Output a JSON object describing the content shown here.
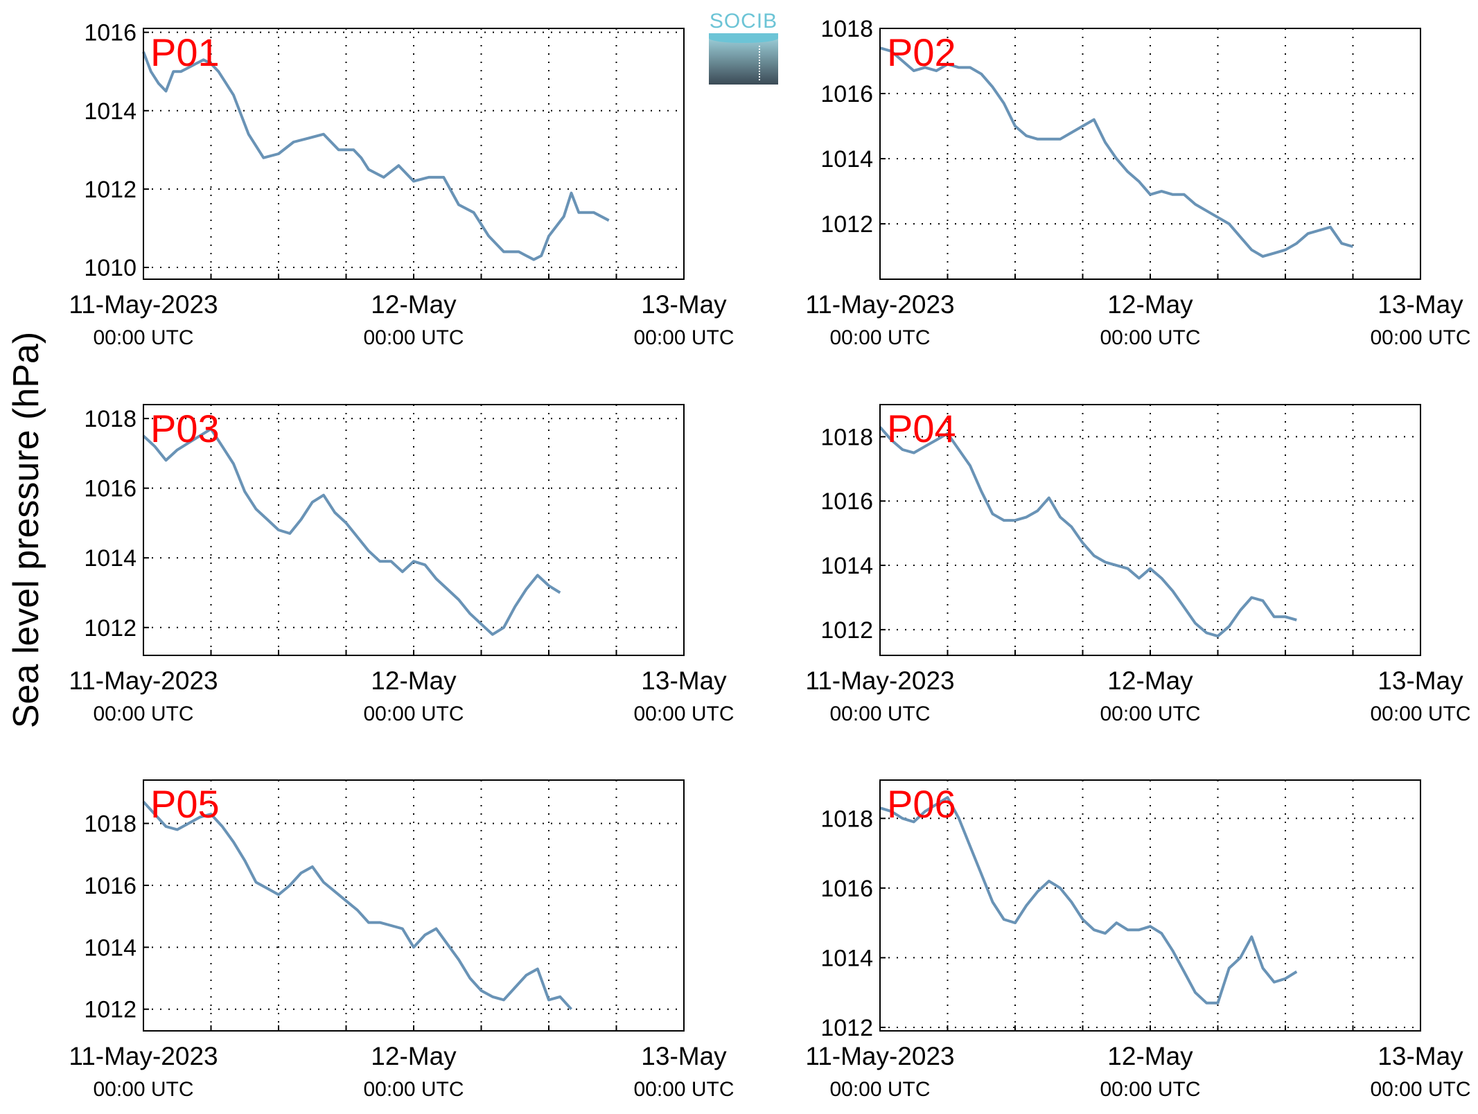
{
  "figure": {
    "ylabel": "Sea level pressure (hPa)",
    "logo_text": "SOCIB"
  },
  "colors": {
    "line": "#6993b6",
    "station_label": "#ff0000",
    "grid": "#000000",
    "axes": "#000000"
  },
  "chart_data": [
    {
      "type": "line",
      "panel_label": "P01",
      "xlim": [
        "11-May-2023 00:00 UTC",
        "13-May 00:00 UTC"
      ],
      "x_ticks": [
        {
          "line1": "11-May-2023",
          "line2": "00:00 UTC"
        },
        {
          "line1": "12-May",
          "line2": "00:00 UTC"
        },
        {
          "line1": "13-May",
          "line2": "00:00 UTC"
        }
      ],
      "ylim": [
        1009.7,
        1016.1
      ],
      "y_ticks": [
        1010,
        1012,
        1014,
        1016
      ],
      "grid": true,
      "x_hours": [
        0,
        1,
        2,
        3,
        4,
        5,
        6,
        7,
        8,
        9,
        10,
        11,
        12,
        14,
        16,
        18,
        20,
        22,
        24,
        26,
        28,
        29,
        30,
        32,
        34,
        36,
        38,
        40,
        42,
        44,
        45,
        46,
        48,
        50,
        51,
        52,
        53,
        54,
        56,
        57,
        58,
        60,
        62,
        64,
        66,
        68,
        70,
        72
      ],
      "values": [
        1015.5,
        1015.0,
        1014.7,
        1014.5,
        1015.0,
        1015.0,
        1015.1,
        1015.2,
        1015.3,
        1015.2,
        1015.0,
        1014.7,
        1014.4,
        1013.4,
        1012.8,
        1012.9,
        1013.2,
        1013.3,
        1013.4,
        1013.0,
        1013.0,
        1012.8,
        1012.5,
        1012.3,
        1012.6,
        1012.2,
        1012.3,
        1012.3,
        1011.6,
        1011.4,
        1011.1,
        1010.8,
        1010.4,
        1010.4,
        1010.3,
        1010.2,
        1010.3,
        1010.8,
        1011.3,
        1011.9,
        1011.4,
        1011.4,
        1011.2,
        null,
        null,
        null,
        null,
        null
      ]
    },
    {
      "type": "line",
      "panel_label": "P02",
      "xlim": [
        "11-May-2023 00:00 UTC",
        "13-May 00:00 UTC"
      ],
      "x_ticks": [
        {
          "line1": "11-May-2023",
          "line2": "00:00 UTC"
        },
        {
          "line1": "12-May",
          "line2": "00:00 UTC"
        },
        {
          "line1": "13-May",
          "line2": "00:00 UTC"
        }
      ],
      "ylim": [
        1010.3,
        1018.0
      ],
      "y_ticks": [
        1012,
        1014,
        1016,
        1018
      ],
      "grid": true,
      "x_hours": [
        0,
        1,
        2,
        3,
        4,
        5,
        6,
        7,
        8,
        9,
        10,
        11,
        12,
        13,
        14,
        15,
        16,
        17,
        18,
        19,
        20,
        21,
        22,
        23,
        24,
        25,
        26,
        27,
        28,
        29,
        30,
        31,
        32,
        33,
        34,
        35,
        36,
        37,
        38,
        39,
        40,
        41,
        42,
        43,
        44,
        45,
        46,
        47,
        48
      ],
      "values": [
        1017.4,
        1017.3,
        1017.0,
        1016.7,
        1016.8,
        1016.7,
        1016.9,
        1016.8,
        1016.8,
        1016.6,
        1016.2,
        1015.7,
        1015.0,
        1014.7,
        1014.6,
        1014.6,
        1014.6,
        1014.8,
        1015.0,
        1015.2,
        1014.5,
        1014.0,
        1013.6,
        1013.3,
        1012.9,
        1013.0,
        1012.9,
        1012.9,
        1012.6,
        1012.4,
        1012.2,
        1012.0,
        1011.6,
        1011.2,
        1011.0,
        1011.1,
        1011.2,
        1011.4,
        1011.7,
        1011.8,
        1011.9,
        1011.4,
        1011.3,
        null,
        null,
        null,
        null,
        null,
        null
      ]
    },
    {
      "type": "line",
      "panel_label": "P03",
      "xlim": [
        "11-May-2023 00:00 UTC",
        "13-May 00:00 UTC"
      ],
      "x_ticks": [
        {
          "line1": "11-May-2023",
          "line2": "00:00 UTC"
        },
        {
          "line1": "12-May",
          "line2": "00:00 UTC"
        },
        {
          "line1": "13-May",
          "line2": "00:00 UTC"
        }
      ],
      "ylim": [
        1011.2,
        1018.4
      ],
      "y_ticks": [
        1012,
        1014,
        1016,
        1018
      ],
      "grid": true,
      "x_hours": [
        0,
        1,
        2,
        3,
        4,
        5,
        6,
        7,
        8,
        9,
        10,
        11,
        12,
        13,
        14,
        15,
        16,
        17,
        18,
        19,
        20,
        21,
        22,
        23,
        24,
        25,
        26,
        27,
        28,
        29,
        30,
        31,
        32,
        33,
        34,
        35,
        36,
        37,
        38,
        39,
        40,
        41,
        42,
        43,
        44,
        45,
        46,
        47,
        48
      ],
      "values": [
        1017.5,
        1017.2,
        1016.8,
        1017.1,
        1017.3,
        1017.5,
        1017.7,
        1017.2,
        1016.7,
        1015.9,
        1015.4,
        1015.1,
        1014.8,
        1014.7,
        1015.1,
        1015.6,
        1015.8,
        1015.3,
        1015.0,
        1014.6,
        1014.2,
        1013.9,
        1013.9,
        1013.6,
        1013.9,
        1013.8,
        1013.4,
        1013.1,
        1012.8,
        1012.4,
        1012.1,
        1011.8,
        1012.0,
        1012.6,
        1013.1,
        1013.5,
        1013.2,
        1013.0,
        null,
        null,
        null,
        null,
        null,
        null,
        null,
        null,
        null,
        null,
        null
      ]
    },
    {
      "type": "line",
      "panel_label": "P04",
      "xlim": [
        "11-May-2023 00:00 UTC",
        "13-May 00:00 UTC"
      ],
      "x_ticks": [
        {
          "line1": "11-May-2023",
          "line2": "00:00 UTC"
        },
        {
          "line1": "12-May",
          "line2": "00:00 UTC"
        },
        {
          "line1": "13-May",
          "line2": "00:00 UTC"
        }
      ],
      "ylim": [
        1011.2,
        1019.0
      ],
      "y_ticks": [
        1012,
        1014,
        1016,
        1018
      ],
      "grid": true,
      "x_hours": [
        0,
        1,
        2,
        3,
        4,
        5,
        6,
        7,
        8,
        9,
        10,
        11,
        12,
        13,
        14,
        15,
        16,
        17,
        18,
        19,
        20,
        21,
        22,
        23,
        24,
        25,
        26,
        27,
        28,
        29,
        30,
        31,
        32,
        33,
        34,
        35,
        36,
        37,
        38,
        39,
        40,
        41,
        42,
        43,
        44,
        45,
        46,
        47,
        48
      ],
      "values": [
        1018.3,
        1017.9,
        1017.6,
        1017.5,
        1017.7,
        1017.9,
        1018.1,
        1017.6,
        1017.1,
        1016.3,
        1015.6,
        1015.4,
        1015.4,
        1015.5,
        1015.7,
        1016.1,
        1015.5,
        1015.2,
        1014.7,
        1014.3,
        1014.1,
        1014.0,
        1013.9,
        1013.6,
        1013.9,
        1013.6,
        1013.2,
        1012.7,
        1012.2,
        1011.9,
        1011.8,
        1012.1,
        1012.6,
        1013.0,
        1012.9,
        1012.4,
        1012.4,
        1012.3,
        null,
        null,
        null,
        null,
        null,
        null,
        null,
        null,
        null,
        null,
        null
      ]
    },
    {
      "type": "line",
      "panel_label": "P05",
      "xlim": [
        "11-May-2023 00:00 UTC",
        "13-May 00:00 UTC"
      ],
      "x_ticks": [
        {
          "line1": "11-May-2023",
          "line2": "00:00 UTC"
        },
        {
          "line1": "12-May",
          "line2": "00:00 UTC"
        },
        {
          "line1": "13-May",
          "line2": "00:00 UTC"
        }
      ],
      "ylim": [
        1011.3,
        1019.4
      ],
      "y_ticks": [
        1012,
        1014,
        1016,
        1018
      ],
      "grid": true,
      "x_hours": [
        0,
        1,
        2,
        3,
        4,
        5,
        6,
        7,
        8,
        9,
        10,
        11,
        12,
        13,
        14,
        15,
        16,
        17,
        18,
        19,
        20,
        21,
        22,
        23,
        24,
        25,
        26,
        27,
        28,
        29,
        30,
        31,
        32,
        33,
        34,
        35,
        36,
        37,
        38,
        39,
        40,
        41,
        42,
        43,
        44,
        45,
        46,
        47,
        48
      ],
      "values": [
        1018.7,
        1018.3,
        1017.9,
        1017.8,
        1018.0,
        1018.2,
        1018.3,
        1017.9,
        1017.4,
        1016.8,
        1016.1,
        1015.9,
        1015.7,
        1016.0,
        1016.4,
        1016.6,
        1016.1,
        1015.8,
        1015.5,
        1015.2,
        1014.8,
        1014.8,
        1014.7,
        1014.6,
        1014.0,
        1014.4,
        1014.6,
        1014.1,
        1013.6,
        1013.0,
        1012.6,
        1012.4,
        1012.3,
        1012.7,
        1013.1,
        1013.3,
        1012.3,
        1012.4,
        1012.0,
        null,
        null,
        null,
        null,
        null,
        null,
        null,
        null,
        null,
        null
      ]
    },
    {
      "type": "line",
      "panel_label": "P06",
      "xlim": [
        "11-May-2023 00:00 UTC",
        "13-May 00:00 UTC"
      ],
      "x_ticks": [
        {
          "line1": "11-May-2023",
          "line2": "00:00 UTC"
        },
        {
          "line1": "12-May",
          "line2": "00:00 UTC"
        },
        {
          "line1": "13-May",
          "line2": "00:00 UTC"
        }
      ],
      "ylim": [
        1011.9,
        1019.1
      ],
      "y_ticks": [
        1012,
        1014,
        1016,
        1018
      ],
      "grid": true,
      "x_hours": [
        0,
        1,
        2,
        3,
        4,
        5,
        6,
        7,
        8,
        9,
        10,
        11,
        12,
        13,
        14,
        15,
        16,
        17,
        18,
        19,
        20,
        21,
        22,
        23,
        24,
        25,
        26,
        27,
        28,
        29,
        30,
        31,
        32,
        33,
        34,
        35,
        36,
        37,
        38,
        39,
        40,
        41,
        42,
        43,
        44,
        45,
        46,
        47,
        48
      ],
      "values": [
        1018.3,
        1018.2,
        1018.0,
        1017.9,
        1018.2,
        1018.4,
        1018.6,
        1018.0,
        1017.2,
        1016.4,
        1015.6,
        1015.1,
        1015.0,
        1015.5,
        1015.9,
        1016.2,
        1016.0,
        1015.6,
        1015.1,
        1014.8,
        1014.7,
        1015.0,
        1014.8,
        1014.8,
        1014.9,
        1014.7,
        1014.2,
        1013.6,
        1013.0,
        1012.7,
        1012.7,
        1013.7,
        1014.0,
        1014.6,
        1013.7,
        1013.3,
        1013.4,
        1013.6,
        null,
        null,
        null,
        null,
        null,
        null,
        null,
        null,
        null,
        null,
        null
      ]
    }
  ]
}
